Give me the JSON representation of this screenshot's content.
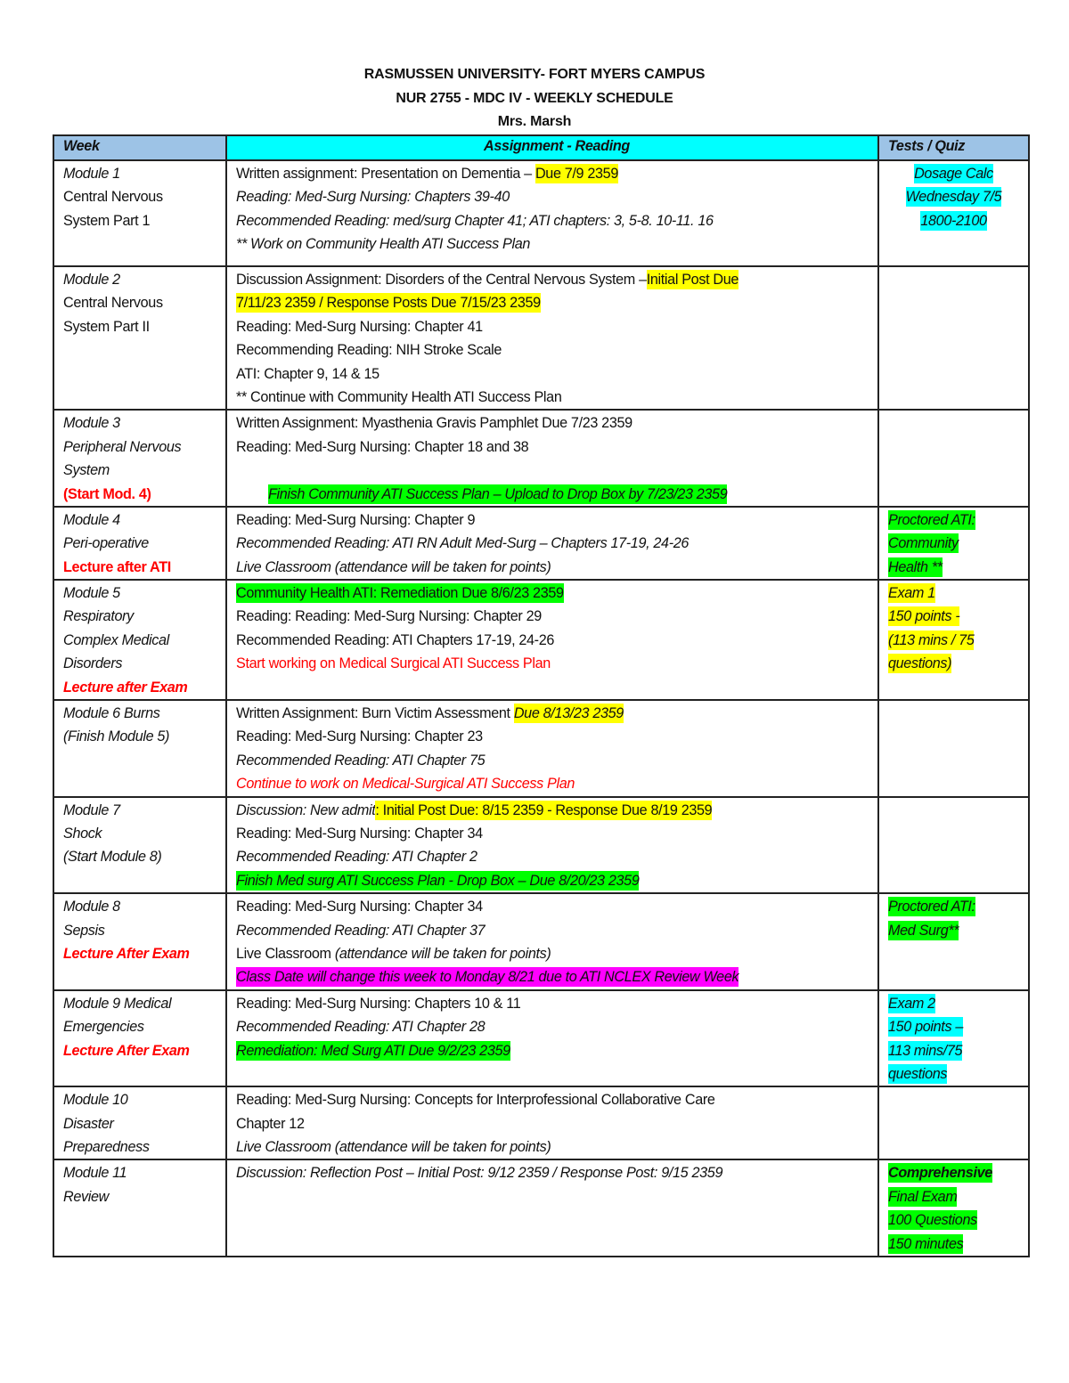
{
  "header": {
    "line1": "RASMUSSEN UNIVERSITY- FORT MYERS CAMPUS",
    "line2": "NUR 2755 - MDC IV - WEEKLY SCHEDULE",
    "line3": "Mrs.  Marsh"
  },
  "columns": [
    "Week",
    "Assignment - Reading",
    "Tests / Quiz"
  ],
  "highlight_colors": {
    "yellow": "#ffff00",
    "green": "#00ff00",
    "cyan": "#00ffff",
    "magenta": "#ff00ff",
    "red_text": "#ff0000",
    "header_bg": "#9dc3e6"
  },
  "rows": [
    {
      "week": [
        [
          {
            "t": "Module 1",
            "s": "i"
          }
        ],
        [
          {
            "t": "Central Nervous",
            "s": ""
          }
        ],
        [
          {
            "t": "System Part 1",
            "s": ""
          }
        ]
      ],
      "assignment": [
        [
          {
            "t": "Written assignment: Presentation on Dementia – ",
            "s": ""
          },
          {
            "t": "Due 7/9 2359",
            "s": "y"
          }
        ],
        [
          {
            "t": "Reading: Med-Surg Nursing:  Chapters 39-40",
            "s": "i"
          }
        ],
        [
          {
            "t": "Recommended Reading: med/surg Chapter 41; ATI chapters: 3, 5-8. 10-11. 16",
            "s": "i"
          }
        ],
        [
          {
            "t": "** Work on Community Health ATI Success Plan",
            "s": "i"
          }
        ]
      ],
      "tests": [
        [
          {
            "t": "Dosage Calc",
            "s": "i c"
          }
        ],
        [
          {
            "t": "Wednesday 7/5",
            "s": "i c"
          }
        ],
        [
          {
            "t": "1800-2100",
            "s": "i c"
          }
        ]
      ],
      "tests_centered": true
    },
    {
      "week": [
        [
          {
            "t": "Module 2",
            "s": "i"
          }
        ],
        [
          {
            "t": "Central Nervous",
            "s": ""
          }
        ],
        [
          {
            "t": "System Part II",
            "s": ""
          }
        ]
      ],
      "assignment": [
        [
          {
            "t": "Discussion Assignment: Disorders of the Central Nervous System –",
            "s": ""
          },
          {
            "t": "Initial Post Due",
            "s": "y"
          }
        ],
        [
          {
            "t": "7/11/23 2359 / Response Posts Due 7/15/23 2359 ",
            "s": "y"
          }
        ],
        [
          {
            "t": "Reading: Med-Surg Nursing:  Chapter 41",
            "s": ""
          }
        ],
        [
          {
            "t": "Recommending Reading: NIH Stroke Scale",
            "s": ""
          }
        ],
        [
          {
            "t": "ATI: Chapter 9, 14 & 15",
            "s": ""
          }
        ],
        [
          {
            "t": "** Continue with Community Health ATI Success Plan",
            "s": ""
          }
        ]
      ],
      "tests": []
    },
    {
      "week": [
        [
          {
            "t": "Module 3",
            "s": "i"
          }
        ],
        [
          {
            "t": "Peripheral Nervous",
            "s": "i"
          }
        ],
        [
          {
            "t": "System",
            "s": "i"
          }
        ],
        [
          {
            "t": "(Start Mod. 4)",
            "s": "r b"
          }
        ]
      ],
      "assignment": [
        [
          {
            "t": "Written Assignment: Myasthenia Gravis Pamphlet Due 7/23 2359",
            "s": ""
          }
        ],
        [
          {
            "t": "Reading: Med-Surg Nursing: Chapter 18 and 38",
            "s": ""
          }
        ],
        [
          {
            "t": "",
            "s": ""
          }
        ],
        [
          {
            "t": "Finish Community ATI Success Plan – Upload to Drop Box by 7/23/23 2359",
            "s": "i g",
            "indent": true
          }
        ]
      ],
      "tests": []
    },
    {
      "week": [
        [
          {
            "t": "Module 4",
            "s": "i"
          }
        ],
        [
          {
            "t": "Peri-operative",
            "s": "i"
          }
        ],
        [
          {
            "t": "Lecture after ATI",
            "s": "r b"
          }
        ]
      ],
      "assignment": [
        [
          {
            "t": "Reading: Med-Surg Nursing: Chapter 9",
            "s": ""
          }
        ],
        [
          {
            "t": "Recommended Reading: ATI RN Adult Med-Surg – Chapters 17-19, 24-26",
            "s": "i"
          }
        ],
        [
          {
            "t": "Live Classroom (attendance will be taken for points)",
            "s": "i"
          }
        ]
      ],
      "tests": [
        [
          {
            "t": "Proctored ATI:",
            "s": "i g"
          }
        ],
        [
          {
            "t": "Community",
            "s": "i g"
          }
        ],
        [
          {
            "t": "Health **",
            "s": "i g"
          }
        ]
      ]
    },
    {
      "week": [
        [
          {
            "t": "Module 5",
            "s": "i"
          }
        ],
        [
          {
            "t": "Respiratory",
            "s": "i"
          }
        ],
        [
          {
            "t": "Complex Medical",
            "s": "i"
          }
        ],
        [
          {
            "t": "Disorders",
            "s": "i"
          }
        ],
        [
          {
            "t": "Lecture after Exam",
            "s": "r i b"
          }
        ]
      ],
      "assignment": [
        [
          {
            "t": "Community Health ATI: Remediation Due 8/6/23 2359",
            "s": "g"
          }
        ],
        [
          {
            "t": "Reading: Reading: Med-Surg Nursing:  Chapter 29",
            "s": ""
          }
        ],
        [
          {
            "t": "Recommended Reading: ATI Chapters 17-19, 24-26",
            "s": ""
          }
        ],
        [
          {
            "t": "Start working on Medical Surgical ATI Success Plan",
            "s": "r"
          }
        ]
      ],
      "tests": [
        [
          {
            "t": "Exam 1",
            "s": "i y"
          }
        ],
        [
          {
            "t": "150 points -",
            "s": "i y"
          }
        ],
        [
          {
            "t": "(113 mins / 75",
            "s": "i y"
          }
        ],
        [
          {
            "t": "questions)",
            "s": "i y"
          }
        ]
      ]
    },
    {
      "week": [
        [
          {
            "t": "Module 6 Burns",
            "s": "i"
          }
        ],
        [
          {
            "t": "(Finish Module 5)",
            "s": "i"
          }
        ]
      ],
      "assignment": [
        [
          {
            "t": "Written Assignment: Burn Victim Assessment ",
            "s": ""
          },
          {
            "t": "Due 8/13/23 2359",
            "s": "i y"
          }
        ],
        [
          {
            "t": "Reading: Med-Surg Nursing: Chapter 23",
            "s": ""
          }
        ],
        [
          {
            "t": "Recommended Reading: ATI Chapter 75",
            "s": "i"
          }
        ],
        [
          {
            "t": "Continue to work on Medical-Surgical ATI Success Plan",
            "s": "i r"
          }
        ]
      ],
      "tests": []
    },
    {
      "week": [
        [
          {
            "t": "Module 7",
            "s": "i"
          }
        ],
        [
          {
            "t": "Shock",
            "s": "i"
          }
        ],
        [
          {
            "t": "(Start Module 8)",
            "s": "i"
          }
        ]
      ],
      "assignment": [
        [
          {
            "t": "Discussion: New admit",
            "s": "i"
          },
          {
            "t": ": Initial Post Due: 8/15 2359 - Response Due 8/19 2359",
            "s": "y"
          }
        ],
        [
          {
            "t": "Reading: Med-Surg Nursing: Chapter 34",
            "s": ""
          }
        ],
        [
          {
            "t": "Recommended Reading: ATI Chapter 2",
            "s": "i"
          }
        ],
        [
          {
            "t": "Finish Med surg ATI Success Plan - Drop Box – Due 8/20/23 2359",
            "s": "i g"
          }
        ]
      ],
      "tests": []
    },
    {
      "week": [
        [
          {
            "t": "Module 8",
            "s": "i"
          }
        ],
        [
          {
            "t": "Sepsis",
            "s": "i"
          }
        ],
        [
          {
            "t": "Lecture After Exam",
            "s": "r i b"
          }
        ]
      ],
      "assignment": [
        [
          {
            "t": "Reading: Med-Surg Nursing: Chapter 34",
            "s": ""
          }
        ],
        [
          {
            "t": "Recommended Reading: ATI Chapter 37",
            "s": "i"
          }
        ],
        [
          {
            "t": "Live Classroom ",
            "s": ""
          },
          {
            "t": "(attendance will be taken for points)",
            "s": "i"
          }
        ],
        [
          {
            "t": "Class Date will change this week to Monday 8/21 due to ATI NCLEX Review Week",
            "s": "i m"
          }
        ]
      ],
      "tests": [
        [
          {
            "t": "Proctored ATI:",
            "s": "i g"
          }
        ],
        [
          {
            "t": "Med Surg**",
            "s": "i g"
          }
        ]
      ]
    },
    {
      "week": [
        [
          {
            "t": "Module 9 Medical",
            "s": "i"
          }
        ],
        [
          {
            "t": "Emergencies",
            "s": "i"
          }
        ],
        [
          {
            "t": "Lecture After Exam",
            "s": "r i b"
          }
        ]
      ],
      "assignment": [
        [
          {
            "t": "Reading: Med-Surg Nursing: Chapters 10 & 11",
            "s": ""
          }
        ],
        [
          {
            "t": "Recommended Reading: ATI Chapter 28",
            "s": "i"
          }
        ],
        [
          {
            "t": "Remediation: Med Surg ATI Due 9/2/23 2359",
            "s": "i g"
          }
        ]
      ],
      "tests": [
        [
          {
            "t": "Exam 2",
            "s": "i c"
          }
        ],
        [
          {
            "t": "150 points –",
            "s": "i c"
          }
        ],
        [
          {
            "t": "113 mins/75",
            "s": "i c"
          }
        ],
        [
          {
            "t": "questions",
            "s": "i c"
          }
        ]
      ]
    },
    {
      "week": [
        [
          {
            "t": "Module 10",
            "s": "i"
          }
        ],
        [
          {
            "t": "Disaster",
            "s": "i"
          }
        ],
        [
          {
            "t": "Preparedness",
            "s": "i"
          }
        ]
      ],
      "assignment": [
        [
          {
            "t": "Reading: Med-Surg Nursing: Concepts for Interprofessional Collaborative Care",
            "s": ""
          }
        ],
        [
          {
            "t": "Chapter 12",
            "s": ""
          }
        ],
        [
          {
            "t": "Live Classroom (attendance will be taken for points)",
            "s": "i"
          }
        ]
      ],
      "tests": []
    },
    {
      "week": [
        [
          {
            "t": "Module 11",
            "s": "i"
          }
        ],
        [
          {
            "t": "Review",
            "s": "i"
          }
        ]
      ],
      "assignment": [
        [
          {
            "t": "Discussion: Reflection Post – Initial Post: 9/12 2359 / Response Post: 9/15 2359",
            "s": "i"
          }
        ]
      ],
      "tests": [
        [
          {
            "t": "Comprehensive",
            "s": "i b g"
          }
        ],
        [
          {
            "t": "Final Exam",
            "s": "i g"
          }
        ],
        [
          {
            "t": "100 Questions",
            "s": "i g"
          }
        ],
        [
          {
            "t": "150 minutes",
            "s": "i g"
          }
        ]
      ]
    }
  ]
}
